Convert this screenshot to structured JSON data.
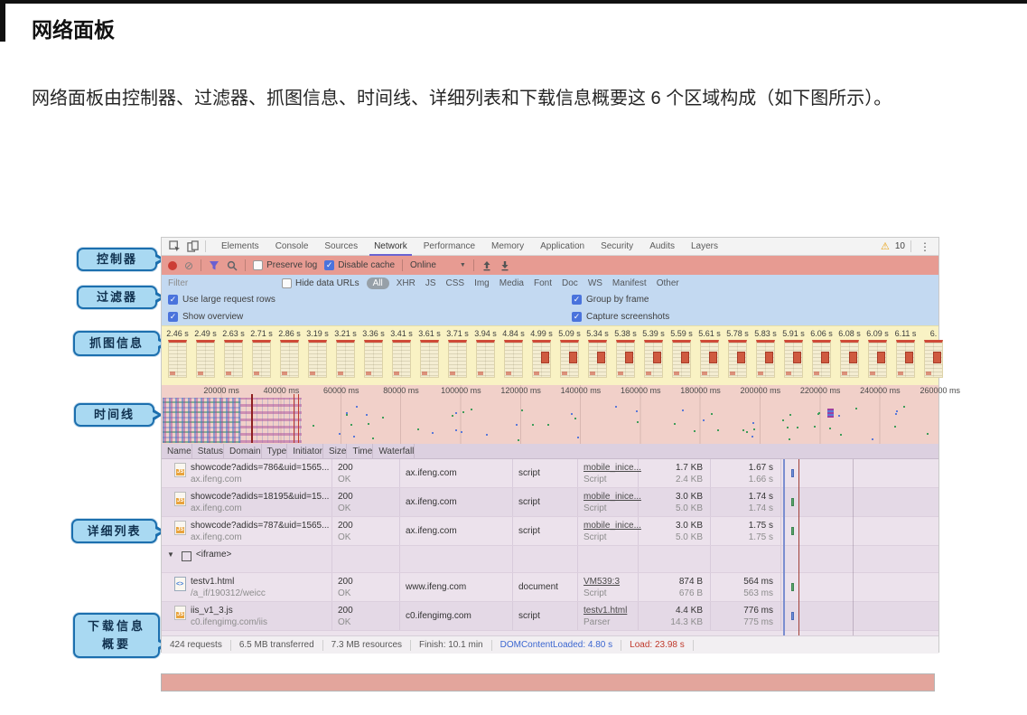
{
  "page": {
    "title": "网络面板",
    "paragraph": "网络面板由控制器、过滤器、抓图信息、时间线、详细列表和下载信息概要这 6 个区域构成（如下图所示）。"
  },
  "callouts": {
    "controller": "控制器",
    "filter": "过滤器",
    "capture": "抓图信息",
    "timeline": "时间线",
    "table": "详细列表",
    "summary_line1": "下载信息",
    "summary_line2": "概要"
  },
  "devtools": {
    "tabs": [
      {
        "label": "Elements",
        "cls": ""
      },
      {
        "label": "Console",
        "cls": ""
      },
      {
        "label": "Sources",
        "cls": ""
      },
      {
        "label": "Network",
        "cls": "active"
      },
      {
        "label": "Performance",
        "cls": ""
      },
      {
        "label": "Memory",
        "cls": ""
      },
      {
        "label": "Application",
        "cls": ""
      },
      {
        "label": "Security",
        "cls": ""
      },
      {
        "label": "Audits",
        "cls": ""
      },
      {
        "label": "Layers",
        "cls": ""
      }
    ],
    "warning_count": "10",
    "controller": {
      "preserve_log": "Preserve log",
      "disable_cache": "Disable cache",
      "online": "Online"
    },
    "filter_bar": {
      "placeholder": "Filter",
      "hide_data_urls": "Hide data URLs",
      "all": "All",
      "types": [
        "XHR",
        "JS",
        "CSS",
        "Img",
        "Media",
        "Font",
        "Doc",
        "WS",
        "Manifest",
        "Other"
      ]
    },
    "options": [
      {
        "label": "Use large request rows"
      },
      {
        "label": "Group by frame"
      },
      {
        "label": "Show overview"
      },
      {
        "label": "Capture screenshots"
      }
    ],
    "filmstrip": [
      {
        "t": "2.46 s"
      },
      {
        "t": "2.49 s"
      },
      {
        "t": "2.63 s"
      },
      {
        "t": "2.71 s"
      },
      {
        "t": "2.86 s"
      },
      {
        "t": "3.19 s"
      },
      {
        "t": "3.21 s"
      },
      {
        "t": "3.36 s"
      },
      {
        "t": "3.41 s"
      },
      {
        "t": "3.61 s"
      },
      {
        "t": "3.71 s"
      },
      {
        "t": "3.94 s"
      },
      {
        "t": "4.84 s"
      },
      {
        "t": "4.99 s"
      },
      {
        "t": "5.09 s"
      },
      {
        "t": "5.34 s"
      },
      {
        "t": "5.38 s"
      },
      {
        "t": "5.39 s"
      },
      {
        "t": "5.59 s"
      },
      {
        "t": "5.61 s"
      },
      {
        "t": "5.78 s"
      },
      {
        "t": "5.83 s"
      },
      {
        "t": "5.91 s"
      },
      {
        "t": "6.06 s"
      },
      {
        "t": "6.08 s"
      },
      {
        "t": "6.09 s"
      },
      {
        "t": "6.11 s"
      },
      {
        "t": "6."
      }
    ],
    "timeline_ticks": [
      {
        "label": "20000 ms"
      },
      {
        "label": "40000 ms"
      },
      {
        "label": "60000 ms"
      },
      {
        "label": "80000 ms"
      },
      {
        "label": "100000 ms"
      },
      {
        "label": "120000 ms"
      },
      {
        "label": "140000 ms"
      },
      {
        "label": "160000 ms"
      },
      {
        "label": "180000 ms"
      },
      {
        "label": "200000 ms"
      },
      {
        "label": "220000 ms"
      },
      {
        "label": "240000 ms"
      },
      {
        "label": "260000 ms"
      }
    ],
    "table": {
      "columns": [
        {
          "label": "Name"
        },
        {
          "label": "Status"
        },
        {
          "label": "Domain"
        },
        {
          "label": "Type"
        },
        {
          "label": "Initiator"
        },
        {
          "label": "Size"
        },
        {
          "label": "Time"
        },
        {
          "label": "Waterfall"
        }
      ],
      "rows": [
        {
          "cls": "odd",
          "icon": "js",
          "caret": "",
          "name": "showcode?adids=786&uid=1565...",
          "sub": "ax.ifeng.com",
          "status": "200",
          "status_sub": "OK",
          "domain": "ax.ifeng.com",
          "type": "script",
          "initiator": "mobile_inice...",
          "initiator_sub": "Script",
          "size": "1.7 KB",
          "size_sub": "2.4 KB",
          "time": "1.67 s",
          "time_sub": "1.66 s",
          "bar": "blue"
        },
        {
          "cls": "even",
          "icon": "js",
          "caret": "",
          "name": "showcode?adids=18195&uid=15...",
          "sub": "ax.ifeng.com",
          "status": "200",
          "status_sub": "OK",
          "domain": "ax.ifeng.com",
          "type": "script",
          "initiator": "mobile_inice...",
          "initiator_sub": "Script",
          "size": "3.0 KB",
          "size_sub": "5.0 KB",
          "time": "1.74 s",
          "time_sub": "1.74 s",
          "bar": "green"
        },
        {
          "cls": "odd",
          "icon": "js",
          "caret": "",
          "name": "showcode?adids=787&uid=1565...",
          "sub": "ax.ifeng.com",
          "status": "200",
          "status_sub": "OK",
          "domain": "ax.ifeng.com",
          "type": "script",
          "initiator": "mobile_inice...",
          "initiator_sub": "Script",
          "size": "3.0 KB",
          "size_sub": "5.0 KB",
          "time": "1.75 s",
          "time_sub": "1.75 s",
          "bar": "green"
        },
        {
          "cls": "group",
          "icon": "iframe",
          "caret": "▼",
          "name": "<iframe>",
          "sub": "",
          "status": "",
          "status_sub": "",
          "domain": "",
          "type": "",
          "initiator": "",
          "initiator_sub": "",
          "size": "",
          "size_sub": "",
          "time": "",
          "time_sub": "",
          "bar": ""
        },
        {
          "cls": "odd",
          "icon": "doc",
          "caret": "",
          "name": "testv1.html",
          "sub": "/a_if/190312/weicc",
          "status": "200",
          "status_sub": "OK",
          "domain": "www.ifeng.com",
          "type": "document",
          "initiator": "VM539:3",
          "initiator_sub": "Script",
          "size": "874 B",
          "size_sub": "676 B",
          "time": "564 ms",
          "time_sub": "563 ms",
          "bar": "green"
        },
        {
          "cls": "even",
          "icon": "js",
          "caret": "",
          "name": "iis_v1_3.js",
          "sub": "c0.ifengimg.com/iis",
          "status": "200",
          "status_sub": "OK",
          "domain": "c0.ifengimg.com",
          "type": "script",
          "initiator": "testv1.html",
          "initiator_sub": "Parser",
          "size": "4.4 KB",
          "size_sub": "14.3 KB",
          "time": "776 ms",
          "time_sub": "775 ms",
          "bar": "blue"
        }
      ]
    },
    "summary": [
      {
        "text": "424 requests",
        "cls": ""
      },
      {
        "text": "6.5 MB transferred",
        "cls": ""
      },
      {
        "text": "7.3 MB resources",
        "cls": ""
      },
      {
        "text": "Finish: 10.1 min",
        "cls": ""
      },
      {
        "text": "DOMContentLoaded: 4.80 s",
        "cls": "blue"
      },
      {
        "text": "Load: 23.98 s",
        "cls": "red"
      }
    ]
  }
}
